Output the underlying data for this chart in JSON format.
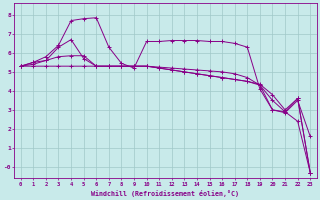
{
  "background_color": "#c8eaea",
  "grid_color": "#a0c8c8",
  "line_color": "#880088",
  "marker_color": "#880088",
  "xlabel": "Windchill (Refroidissement éolien,°C)",
  "xlabel_color": "#880088",
  "tick_color": "#880088",
  "xlim": [
    -0.5,
    23.5
  ],
  "ylim": [
    -0.6,
    8.6
  ],
  "xticks": [
    0,
    1,
    2,
    3,
    4,
    5,
    6,
    7,
    8,
    9,
    10,
    11,
    12,
    13,
    14,
    15,
    16,
    17,
    18,
    19,
    20,
    21,
    22,
    23
  ],
  "yticks": [
    0,
    1,
    2,
    3,
    4,
    5,
    6,
    7,
    8
  ],
  "ytick_labels": [
    "-0",
    "1",
    "2",
    "3",
    "4",
    "5",
    "6",
    "7",
    "8"
  ],
  "series": [
    [
      5.3,
      5.5,
      5.6,
      6.3,
      6.7,
      5.7,
      5.3,
      5.3,
      5.3,
      5.3,
      5.3,
      5.25,
      5.2,
      5.15,
      5.1,
      5.05,
      5.0,
      4.9,
      4.7,
      4.3,
      3.0,
      2.85,
      3.5,
      1.6
    ],
    [
      5.3,
      5.5,
      5.8,
      6.4,
      7.7,
      7.8,
      7.85,
      6.3,
      5.45,
      5.2,
      6.6,
      6.6,
      6.65,
      6.65,
      6.65,
      6.6,
      6.6,
      6.5,
      6.3,
      4.1,
      3.0,
      2.9,
      3.6,
      -0.3
    ],
    [
      5.3,
      5.3,
      5.3,
      5.3,
      5.3,
      5.3,
      5.3,
      5.3,
      5.3,
      5.3,
      5.3,
      5.2,
      5.1,
      5.0,
      4.9,
      4.8,
      4.7,
      4.6,
      4.5,
      4.3,
      3.5,
      2.9,
      2.4,
      -0.3
    ],
    [
      5.3,
      5.4,
      5.6,
      5.8,
      5.85,
      5.85,
      5.3,
      5.3,
      5.3,
      5.3,
      5.3,
      5.2,
      5.1,
      5.0,
      4.9,
      4.8,
      4.7,
      4.6,
      4.5,
      4.35,
      3.8,
      3.0,
      3.6,
      -0.3
    ]
  ]
}
